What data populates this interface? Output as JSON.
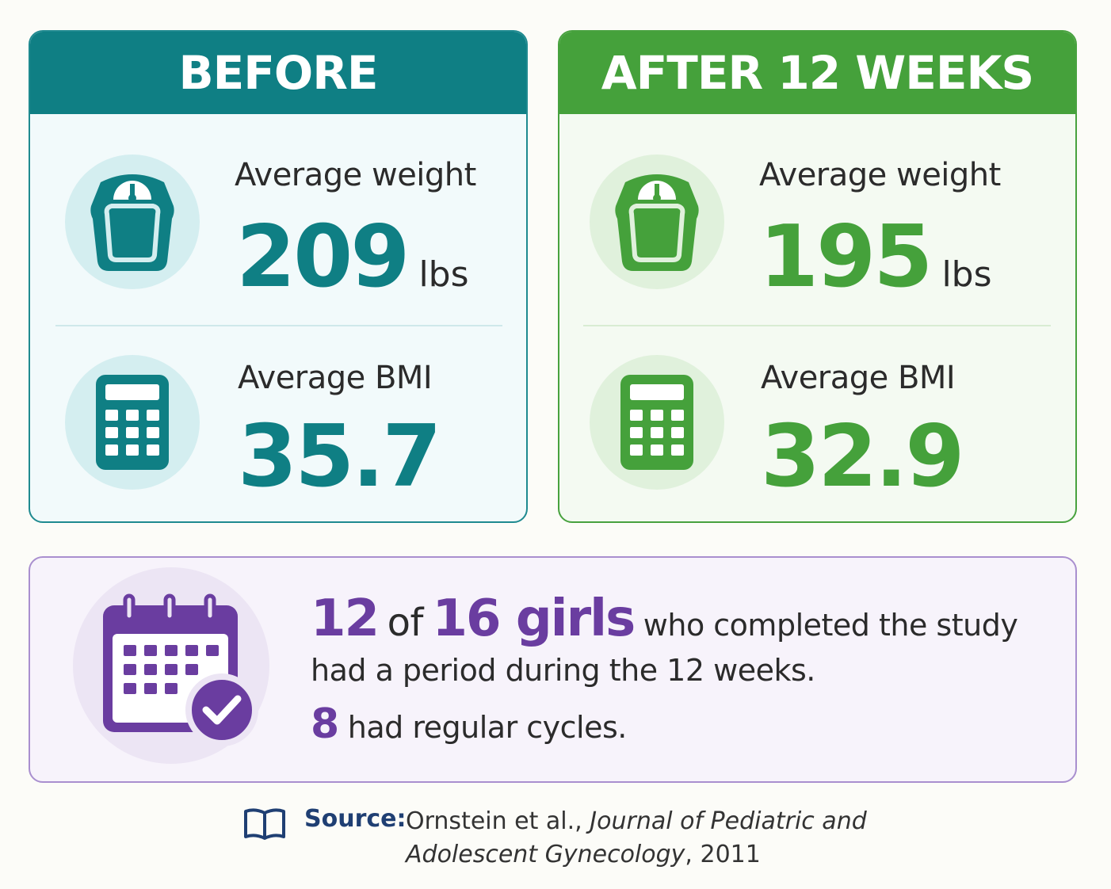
{
  "before": {
    "header": "BEFORE",
    "weight_label": "Average weight",
    "weight_value": "209",
    "weight_unit": "lbs",
    "bmi_label": "Average BMI",
    "bmi_value": "35.7",
    "color": "#0f7f84"
  },
  "after": {
    "header": "AFTER 12 WEEKS",
    "weight_label": "Average weight",
    "weight_value": "195",
    "weight_unit": "lbs",
    "bmi_label": "Average BMI",
    "bmi_value": "32.9",
    "color": "#45a13b"
  },
  "cycle": {
    "count": "12",
    "of_word": "of",
    "total": "16 girls",
    "line1_rest": "who completed the study",
    "line2": "had a period during the 12 weeks.",
    "regular_count": "8",
    "line3_rest": "had regular cycles.",
    "color": "#6a3da0"
  },
  "source": {
    "label": "Source:",
    "authors": "Ornstein et al., ",
    "journal": "Journal of Pediatric and Adolescent Gynecology",
    "year": ", 2011"
  },
  "icons": {
    "scale": "scale-icon",
    "calculator": "calculator-icon",
    "calendar": "calendar-check-icon",
    "book": "book-icon"
  }
}
